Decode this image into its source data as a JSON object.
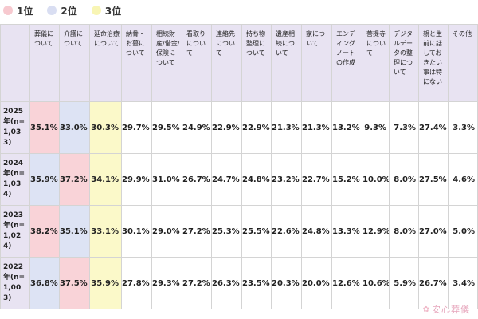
{
  "legend": [
    {
      "label": "1位",
      "color": "#f7c9cf"
    },
    {
      "label": "2位",
      "color": "#d9def2"
    },
    {
      "label": "3位",
      "color": "#f8f5b4"
    }
  ],
  "columns": [
    "葬儀について",
    "介護について",
    "延命治療について",
    "納骨・お墓について",
    "相続財産/借金/保険について",
    "看取りについて",
    "連絡先について",
    "持ち物整理について",
    "遺産相続について",
    "家について",
    "エンディングノートの作成",
    "菩提寺について",
    "デジタルデータの整理について",
    "親と生前に話しておきたい事は特にない",
    "その他"
  ],
  "rows": [
    {
      "label": "2025年(n=1,033)",
      "values": [
        "35.1%",
        "33.0%",
        "30.3%",
        "29.7%",
        "29.5%",
        "24.9%",
        "22.9%",
        "22.9%",
        "21.3%",
        "21.3%",
        "13.2%",
        "9.3%",
        "7.3%",
        "27.4%",
        "3.3%"
      ],
      "highlights": [
        1,
        2,
        3,
        0,
        0,
        0,
        0,
        0,
        0,
        0,
        0,
        0,
        0,
        0,
        0
      ]
    },
    {
      "label": "2024年(n=1,034)",
      "values": [
        "35.9%",
        "37.2%",
        "34.1%",
        "29.9%",
        "31.0%",
        "26.7%",
        "24.7%",
        "24.8%",
        "23.2%",
        "22.7%",
        "15.2%",
        "10.0%",
        "8.0%",
        "27.5%",
        "4.6%"
      ],
      "highlights": [
        2,
        1,
        3,
        0,
        0,
        0,
        0,
        0,
        0,
        0,
        0,
        0,
        0,
        0,
        0
      ]
    },
    {
      "label": "2023年(n=1,024)",
      "values": [
        "38.2%",
        "35.1%",
        "33.1%",
        "30.1%",
        "29.0%",
        "27.2%",
        "25.3%",
        "25.5%",
        "22.6%",
        "24.8%",
        "13.3%",
        "12.9%",
        "8.0%",
        "27.0%",
        "5.0%"
      ],
      "highlights": [
        1,
        2,
        3,
        0,
        0,
        0,
        0,
        0,
        0,
        0,
        0,
        0,
        0,
        0,
        0
      ]
    },
    {
      "label": "2022年(n=1,003)",
      "values": [
        "36.8%",
        "37.5%",
        "35.9%",
        "27.8%",
        "29.3%",
        "27.2%",
        "26.3%",
        "23.5%",
        "20.3%",
        "20.0%",
        "12.6%",
        "10.6%",
        "5.9%",
        "26.7%",
        "3.4%"
      ],
      "highlights": [
        2,
        1,
        3,
        0,
        0,
        0,
        0,
        0,
        0,
        0,
        0,
        0,
        0,
        0,
        0
      ]
    }
  ],
  "logo": {
    "text": "安心葬儀",
    "icon": "flower-icon"
  }
}
